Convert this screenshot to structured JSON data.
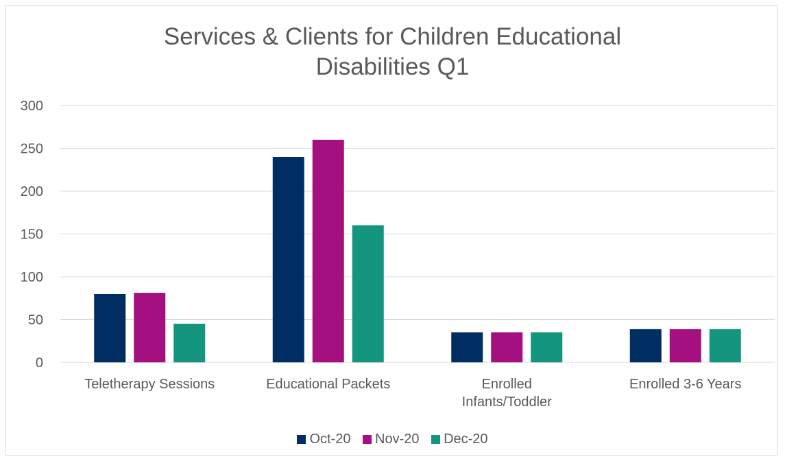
{
  "chart_data": {
    "type": "bar",
    "title_lines": [
      "Services & Clients for Children Educational",
      "Disabilities Q1"
    ],
    "categories": [
      [
        "Teletherapy Sessions"
      ],
      [
        "Educational Packets"
      ],
      [
        "Enrolled",
        "Infants/Toddler"
      ],
      [
        "Enrolled 3-6 Years"
      ]
    ],
    "series": [
      {
        "name": "Oct-20",
        "color": "#002D62",
        "values": [
          80,
          240,
          35,
          39
        ]
      },
      {
        "name": "Nov-20",
        "color": "#A4107F",
        "values": [
          81,
          260,
          35,
          39
        ]
      },
      {
        "name": "Dec-20",
        "color": "#13967D",
        "values": [
          45,
          160,
          35,
          39
        ]
      }
    ],
    "ylim": [
      0,
      300
    ],
    "yticks": [
      0,
      50,
      100,
      150,
      200,
      250,
      300
    ],
    "grid": true,
    "legend_position": "bottom"
  }
}
